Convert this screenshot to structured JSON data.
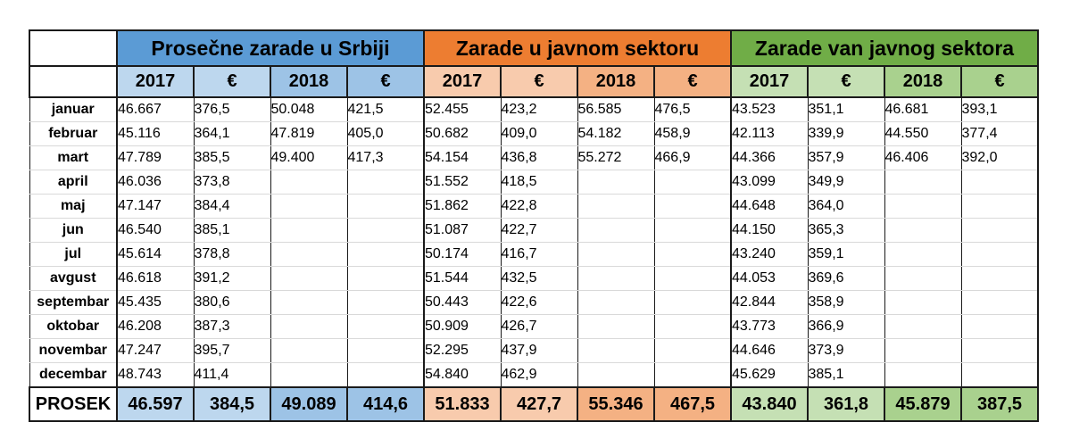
{
  "groups": [
    {
      "title": "Prosečne zarade u Srbiji"
    },
    {
      "title": "Zarade u javnom sektoru"
    },
    {
      "title": "Zarade van javnog sektora"
    }
  ],
  "subheaders": [
    "2017",
    "€",
    "2018",
    "€",
    "2017",
    "€",
    "2018",
    "€",
    "2017",
    "€",
    "2018",
    "€"
  ],
  "colors": {
    "srbija": "#5b9bd5",
    "srbija_light": "#bdd7ee",
    "srbija_mid": "#9dc3e6",
    "javni": "#ed7d31",
    "javni_light": "#f8cbad",
    "javni_mid": "#f4b183",
    "van": "#70ad47",
    "van_light": "#c5e0b4",
    "van_mid": "#a9d18e"
  },
  "rows": [
    {
      "month": "januar",
      "cells": [
        "46.667",
        "376,5",
        "50.048",
        "421,5",
        "52.455",
        "423,2",
        "56.585",
        "476,5",
        "43.523",
        "351,1",
        "46.681",
        "393,1"
      ]
    },
    {
      "month": "februar",
      "cells": [
        "45.116",
        "364,1",
        "47.819",
        "405,0",
        "50.682",
        "409,0",
        "54.182",
        "458,9",
        "42.113",
        "339,9",
        "44.550",
        "377,4"
      ]
    },
    {
      "month": "mart",
      "cells": [
        "47.789",
        "385,5",
        "49.400",
        "417,3",
        "54.154",
        "436,8",
        "55.272",
        "466,9",
        "44.366",
        "357,9",
        "46.406",
        "392,0"
      ]
    },
    {
      "month": "april",
      "cells": [
        "46.036",
        "373,8",
        "",
        "",
        "51.552",
        "418,5",
        "",
        "",
        "43.099",
        "349,9",
        "",
        ""
      ]
    },
    {
      "month": "maj",
      "cells": [
        "47.147",
        "384,4",
        "",
        "",
        "51.862",
        "422,8",
        "",
        "",
        "44.648",
        "364,0",
        "",
        ""
      ]
    },
    {
      "month": "jun",
      "cells": [
        "46.540",
        "385,1",
        "",
        "",
        "51.087",
        "422,7",
        "",
        "",
        "44.150",
        "365,3",
        "",
        ""
      ]
    },
    {
      "month": "jul",
      "cells": [
        "45.614",
        "378,8",
        "",
        "",
        "50.174",
        "416,7",
        "",
        "",
        "43.240",
        "359,1",
        "",
        ""
      ]
    },
    {
      "month": "avgust",
      "cells": [
        "46.618",
        "391,2",
        "",
        "",
        "51.544",
        "432,5",
        "",
        "",
        "44.053",
        "369,6",
        "",
        ""
      ]
    },
    {
      "month": "septembar",
      "cells": [
        "45.435",
        "380,6",
        "",
        "",
        "50.443",
        "422,6",
        "",
        "",
        "42.844",
        "358,9",
        "",
        ""
      ]
    },
    {
      "month": "oktobar",
      "cells": [
        "46.208",
        "387,3",
        "",
        "",
        "50.909",
        "426,7",
        "",
        "",
        "43.773",
        "366,9",
        "",
        ""
      ]
    },
    {
      "month": "novembar",
      "cells": [
        "47.247",
        "395,7",
        "",
        "",
        "52.295",
        "437,9",
        "",
        "",
        "44.646",
        "373,9",
        "",
        ""
      ]
    },
    {
      "month": "decembar",
      "cells": [
        "48.743",
        "411,4",
        "",
        "",
        "54.840",
        "462,9",
        "",
        "",
        "45.629",
        "385,1",
        "",
        ""
      ]
    }
  ],
  "average": {
    "label": "PROSEK",
    "cells": [
      "46.597",
      "384,5",
      "49.089",
      "414,6",
      "51.833",
      "427,7",
      "55.346",
      "467,5",
      "43.840",
      "361,8",
      "45.879",
      "387,5"
    ]
  }
}
